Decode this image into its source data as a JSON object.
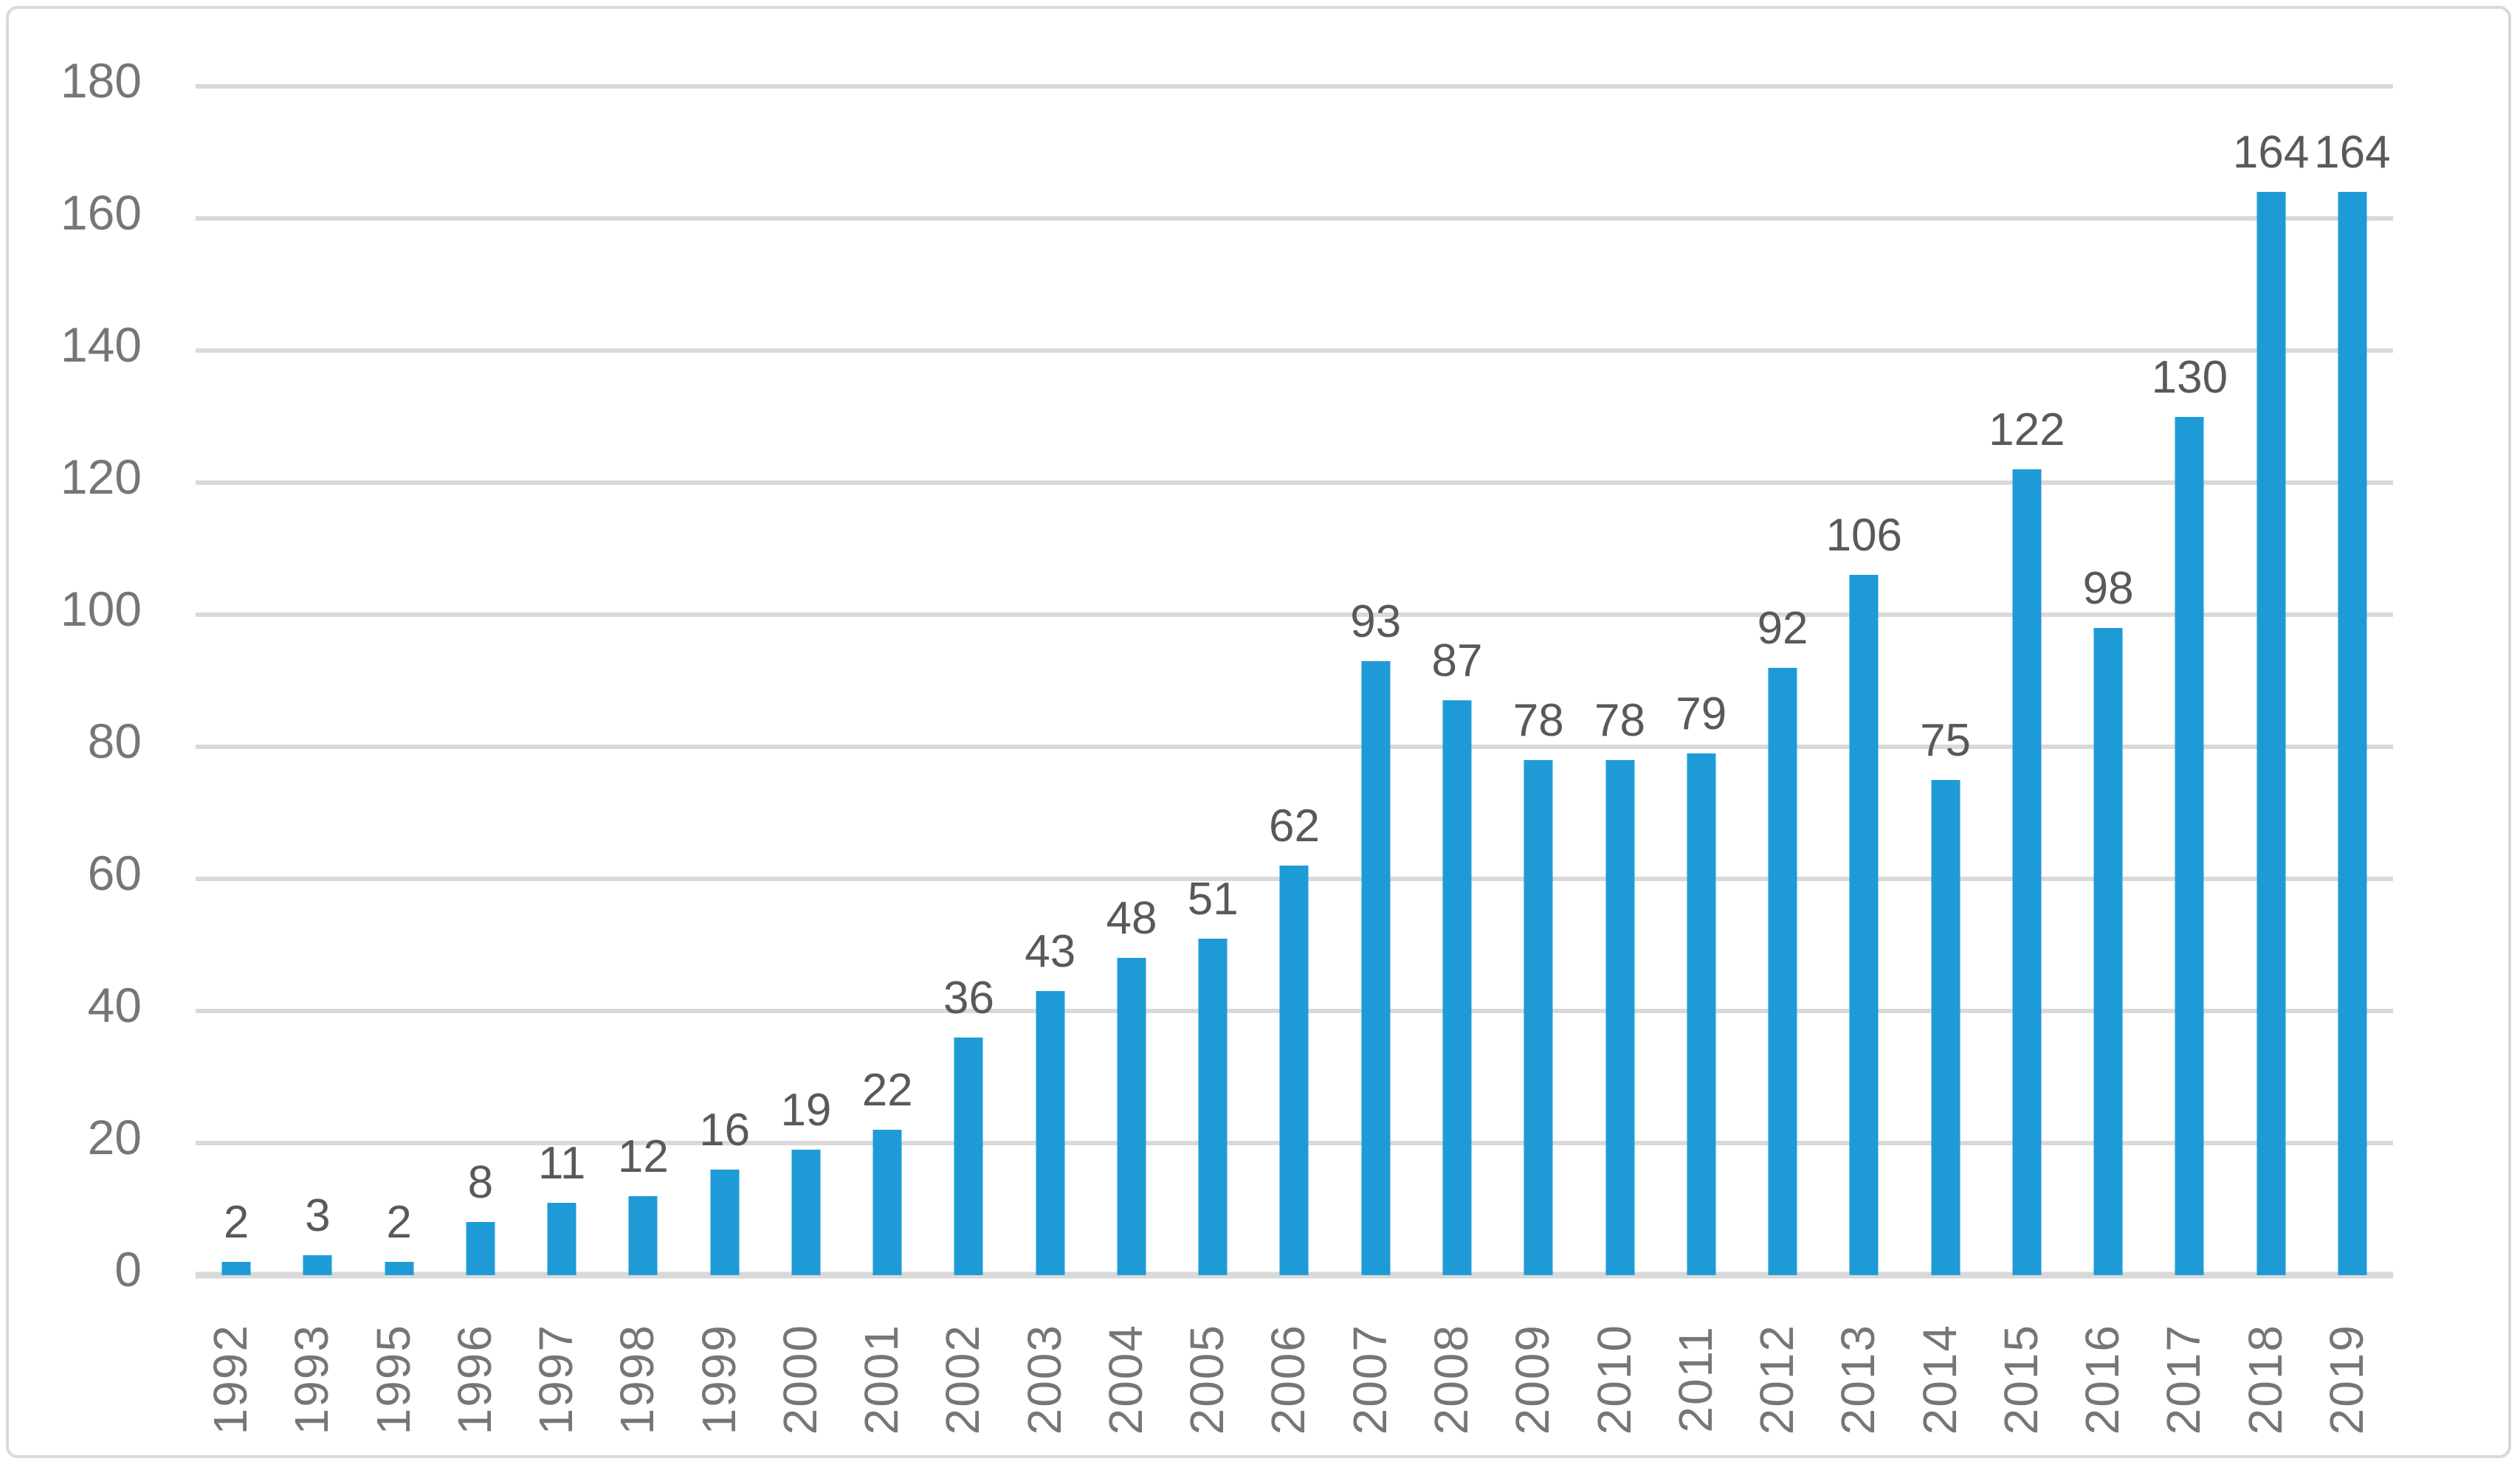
{
  "chart_data": {
    "type": "bar",
    "title": "",
    "xlabel": "",
    "ylabel": "",
    "categories": [
      "1992",
      "1993",
      "1995",
      "1996",
      "1997",
      "1998",
      "1999",
      "2000",
      "2001",
      "2002",
      "2003",
      "2004",
      "2005",
      "2006",
      "2007",
      "2008",
      "2009",
      "2010",
      "2011",
      "2012",
      "2013",
      "2014",
      "2015",
      "2016",
      "2017",
      "2018",
      "2019"
    ],
    "values": [
      2,
      3,
      2,
      8,
      11,
      12,
      16,
      19,
      22,
      36,
      43,
      48,
      51,
      62,
      93,
      87,
      78,
      78,
      79,
      92,
      106,
      75,
      122,
      98,
      130,
      164,
      164
    ],
    "ylim": [
      0,
      180
    ],
    "ytick_step": 20,
    "y_ticks": [
      0,
      20,
      40,
      60,
      80,
      100,
      120,
      140,
      160,
      180
    ],
    "grid": true,
    "legend": false,
    "data_labels": true,
    "bar_gap_ratio": 0.65,
    "colors": {
      "bar": "#1E9BD7",
      "gridline": "#D9D9D9",
      "frame_border": "#D9D9D9",
      "tick_label": "#767676",
      "data_label": "#595959",
      "background": "#FFFFFF"
    }
  }
}
